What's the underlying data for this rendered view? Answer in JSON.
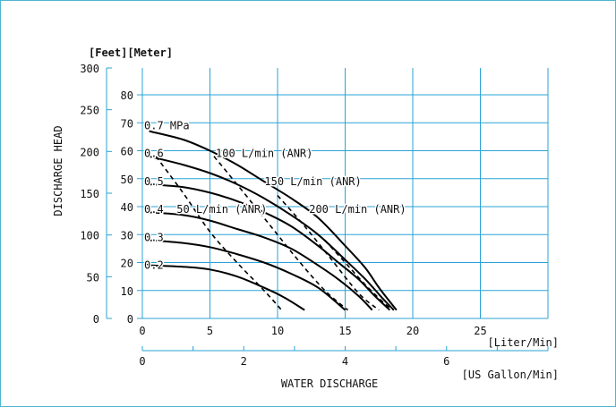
{
  "colors": {
    "frame": "#4fb5d0",
    "grid": "#2aa3d6",
    "curve": "#000000"
  },
  "chart_data": {
    "type": "line",
    "x_axis": {
      "label": "[Liter/Min]",
      "range": [
        0,
        30
      ],
      "ticks": [
        "0",
        "5",
        "10",
        "15",
        "20",
        "25"
      ]
    },
    "x_axis_secondary": {
      "label": "[US Gallon/Min]",
      "range": [
        0,
        8
      ],
      "ticks": [
        "0",
        "2",
        "4",
        "6"
      ]
    },
    "x_axis_title": "WATER DISCHARGE",
    "y_axis": {
      "label": "[Meter]",
      "range": [
        0,
        80
      ],
      "ticks": [
        "0",
        "10",
        "20",
        "30",
        "40",
        "50",
        "60",
        "70",
        "80"
      ]
    },
    "y_axis_secondary": {
      "label": "[Feet]",
      "range": [
        0,
        300
      ],
      "ticks": [
        "0",
        "50",
        "100",
        "150",
        "200",
        "250",
        "300"
      ]
    },
    "y_axis_title": "DISCHARGE HEAD",
    "grid": true,
    "series": [
      {
        "name": "0.7 MPa",
        "style": "solid",
        "x": [
          0.5,
          3,
          5,
          7,
          9,
          11,
          13,
          15,
          16.5,
          17.5,
          18.8
        ],
        "y": [
          67,
          64,
          60,
          55,
          49,
          43,
          36,
          26,
          18,
          11,
          3
        ]
      },
      {
        "name": "0.6",
        "style": "solid",
        "x": [
          0.5,
          3,
          5,
          7,
          9,
          11,
          13,
          15,
          16.5,
          17.8,
          18.6
        ],
        "y": [
          58,
          55,
          52,
          48,
          43,
          37,
          30,
          21,
          14,
          7,
          3
        ]
      },
      {
        "name": "0.5",
        "style": "solid",
        "x": [
          0.5,
          3,
          5,
          7,
          9,
          11,
          13,
          14.5,
          16,
          17.2,
          18.3
        ],
        "y": [
          48,
          47,
          45,
          42,
          38,
          33,
          26,
          20,
          14,
          8,
          3
        ]
      },
      {
        "name": "0.4",
        "style": "solid",
        "x": [
          0.5,
          3,
          5,
          7,
          9,
          11,
          13,
          14.5,
          16,
          17
        ],
        "y": [
          38,
          37,
          35,
          32,
          29,
          25,
          19,
          14,
          8,
          3
        ]
      },
      {
        "name": "0.3",
        "style": "solid",
        "x": [
          0.5,
          3,
          5,
          7,
          9,
          11,
          13,
          15
        ],
        "y": [
          28,
          27,
          25.5,
          23,
          20,
          16,
          11,
          3
        ]
      },
      {
        "name": "0.2",
        "style": "solid",
        "x": [
          0.5,
          3,
          5,
          7,
          9,
          10.5,
          12
        ],
        "y": [
          19,
          18.5,
          17.5,
          15,
          11,
          7.5,
          3
        ]
      },
      {
        "name": "100 L/min (ANR)",
        "style": "dashed",
        "x": [
          1,
          3,
          5,
          7,
          9,
          10.3
        ],
        "y": [
          58,
          45,
          31,
          20,
          10,
          3
        ]
      },
      {
        "name": "50 L/min (ANR)",
        "style": "dashed",
        "x": [
          5.3,
          7.5,
          9.5,
          11.5,
          13.5,
          15.2
        ],
        "y": [
          58,
          45,
          33,
          21,
          10,
          3
        ]
      },
      {
        "name": "150 L/min (ANR)",
        "style": "dashed",
        "x": [
          10,
          12,
          14,
          16,
          17.5
        ],
        "y": [
          44,
          33,
          21,
          9,
          3
        ]
      },
      {
        "name": "200 L/min (ANR)",
        "style": "dashed",
        "x": [
          13.5,
          15,
          16.5,
          18,
          18.6
        ],
        "y": [
          28,
          20,
          12,
          5,
          3
        ]
      }
    ],
    "annotations": [
      {
        "text": "0.7 MPa",
        "x": 0,
        "y": 69
      },
      {
        "text": "0.6",
        "x": 0,
        "y": 59
      },
      {
        "text": "0.5",
        "x": 0,
        "y": 49
      },
      {
        "text": "0.4",
        "x": 0,
        "y": 39
      },
      {
        "text": "0.3",
        "x": 0,
        "y": 29
      },
      {
        "text": "0.2",
        "x": 0,
        "y": 19
      },
      {
        "text": "100 L/min (ANR)",
        "x": 5.3,
        "y": 59
      },
      {
        "text": "150 L/min (ANR)",
        "x": 8.9,
        "y": 49
      },
      {
        "text": "50 L/min (ANR)",
        "x": 2.4,
        "y": 39
      },
      {
        "text": "200 L/min (ANR)",
        "x": 12.2,
        "y": 39
      }
    ]
  }
}
